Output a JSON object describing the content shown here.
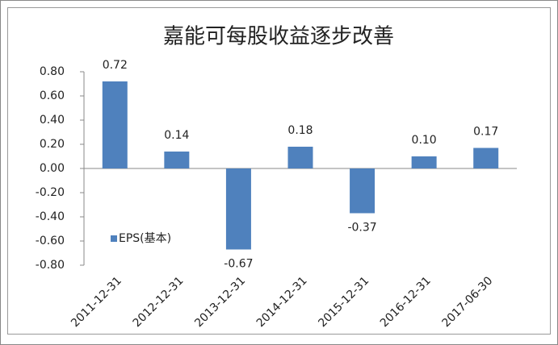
{
  "chart_data": {
    "type": "bar",
    "title": "嘉能可每股收益逐步改善",
    "categories": [
      "2011-12-31",
      "2012-12-31",
      "2013-12-31",
      "2014-12-31",
      "2015-12-31",
      "2016-12-31",
      "2017-06-30"
    ],
    "series": [
      {
        "name": "EPS(基本)",
        "color": "#4f81bd",
        "values": [
          0.72,
          0.14,
          -0.67,
          0.18,
          -0.37,
          0.1,
          0.17
        ],
        "value_labels": [
          "0.72",
          "0.14",
          "-0.67",
          "0.18",
          "-0.37",
          "0.10",
          "0.17"
        ]
      }
    ],
    "ylim": [
      -0.8,
      0.8
    ],
    "yticks": [
      {
        "value": -0.8,
        "label": "-0.80"
      },
      {
        "value": -0.6,
        "label": "-0.60"
      },
      {
        "value": -0.4,
        "label": "-0.40"
      },
      {
        "value": -0.2,
        "label": "-0.20"
      },
      {
        "value": 0,
        "label": "0.00"
      },
      {
        "value": 0.2,
        "label": "0.20"
      },
      {
        "value": 0.4,
        "label": "0.40"
      },
      {
        "value": 0.6,
        "label": "0.60"
      },
      {
        "value": 0.8,
        "label": "0.80"
      }
    ],
    "grid": false,
    "legend": "left"
  }
}
